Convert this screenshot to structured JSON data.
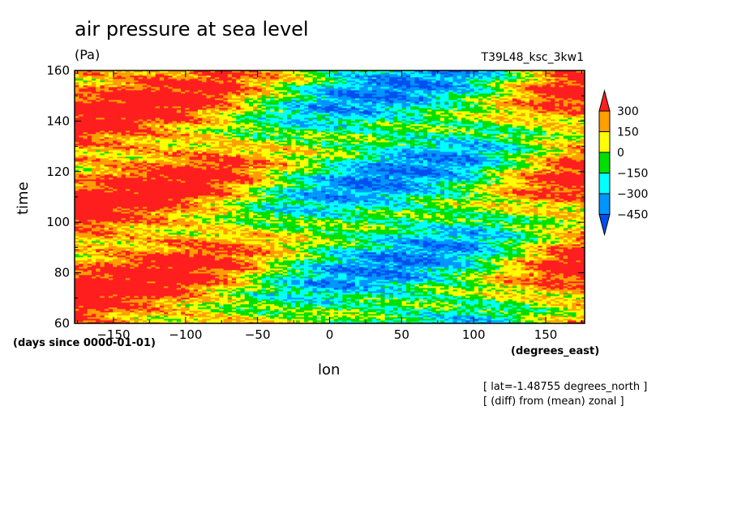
{
  "header": {
    "title": "air pressure at sea level",
    "units": "(Pa)",
    "run": "T39L48_ksc_3kw1"
  },
  "footer": {
    "note1": "[ lat=-1.48755 degrees_north ]",
    "note2": "[ (diff) from (mean) zonal ]"
  },
  "chart_data": {
    "type": "heatmap",
    "title": "air pressure at sea level",
    "subtitle": "(Pa)",
    "xlabel": "lon",
    "ylabel": "time",
    "xunits": "(degrees_east)",
    "yunits": "(days since 0000-01-01)",
    "xlim": [
      -177,
      177
    ],
    "ylim": [
      60,
      160
    ],
    "xticks": [
      -150,
      -100,
      -50,
      0,
      50,
      100,
      150
    ],
    "yticks": [
      60,
      80,
      100,
      120,
      140,
      160
    ],
    "x_tick_labels": [
      "−150",
      "−100",
      "−50",
      "0",
      "50",
      "100",
      "150"
    ],
    "y_tick_labels": [
      "60",
      "80",
      "100",
      "120",
      "140",
      "160"
    ],
    "colorbar": {
      "levels": [
        300,
        150,
        0,
        -150,
        -300,
        -450
      ],
      "labels": [
        "300",
        "150",
        "0",
        "−150",
        "−300",
        "−450"
      ],
      "colors": [
        "#ff1f1f",
        "#ff9f00",
        "#ffff00",
        "#00e000",
        "#00ffff",
        "#0096ff",
        "#0050f0"
      ]
    },
    "pattern_profile": {
      "lon": [
        -177,
        -150,
        -100,
        -70,
        -40,
        0,
        50,
        100,
        150,
        177
      ],
      "mean_anomaly_Pa": [
        320,
        330,
        300,
        200,
        0,
        -200,
        -280,
        -180,
        180,
        300
      ]
    },
    "grid": false
  }
}
